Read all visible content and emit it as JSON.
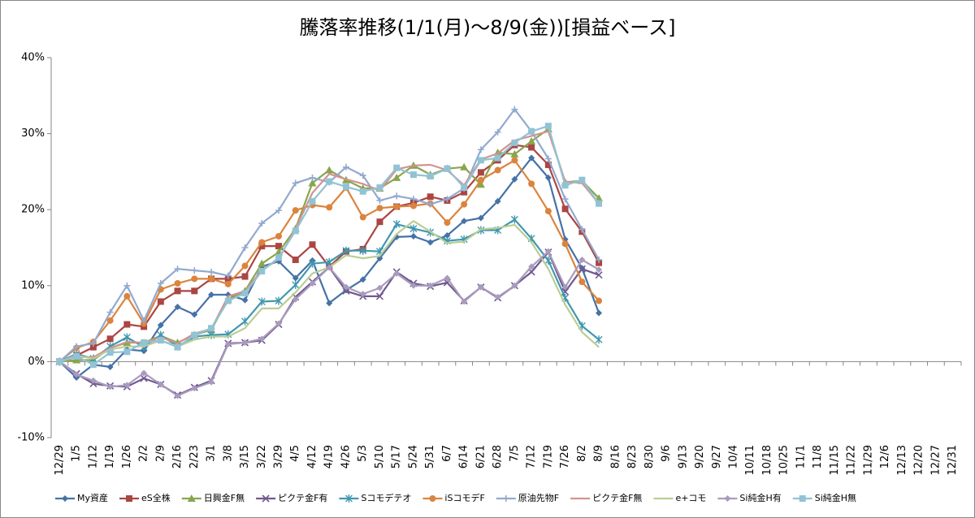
{
  "chart_data": {
    "type": "line",
    "title": "騰落率推移(1/1(月)～8/9(金))[損益ベース]",
    "categories": [
      "12/29",
      "1/5",
      "1/12",
      "1/19",
      "1/26",
      "2/2",
      "2/9",
      "2/16",
      "2/23",
      "3/1",
      "3/8",
      "3/15",
      "3/22",
      "3/29",
      "4/5",
      "4/12",
      "4/19",
      "4/26",
      "5/3",
      "5/10",
      "5/17",
      "5/24",
      "5/31",
      "6/7",
      "6/14",
      "6/21",
      "6/28",
      "7/5",
      "7/12",
      "7/19",
      "7/26",
      "8/2",
      "8/9",
      "8/16",
      "8/23",
      "8/30",
      "9/6",
      "9/13",
      "9/20",
      "9/27",
      "10/4",
      "10/11",
      "10/18",
      "10/25",
      "11/1",
      "11/8",
      "11/15",
      "11/22",
      "11/29",
      "12/6",
      "12/13",
      "12/20",
      "12/27",
      "12/31"
    ],
    "ylim": [
      -10,
      40
    ],
    "yticks": [
      {
        "value": -10,
        "label": "-10%"
      },
      {
        "value": 0,
        "label": "0%"
      },
      {
        "value": 10,
        "label": "10%"
      },
      {
        "value": 20,
        "label": "20%"
      },
      {
        "value": 30,
        "label": "30%"
      },
      {
        "value": 40,
        "label": "40%"
      }
    ],
    "grid": false,
    "legend": "bottom",
    "series": [
      {
        "name": "My資産",
        "color": "#4572a7",
        "marker": "diamond",
        "values": [
          0,
          -2.1,
          -0.4,
          -0.7,
          1.6,
          1.4,
          4.8,
          7.2,
          6.2,
          8.8,
          8.8,
          8.1,
          12.5,
          13.2,
          11.0,
          13.3,
          7.7,
          9.4,
          10.8,
          13.6,
          16.4,
          16.5,
          15.7,
          16.6,
          18.5,
          18.9,
          21.1,
          24.0,
          26.8,
          24.2,
          16.1,
          12.3,
          6.4,
          null,
          null,
          null,
          null,
          null,
          null,
          null,
          null,
          null,
          null,
          null,
          null,
          null,
          null,
          null,
          null,
          null,
          null,
          null,
          null,
          null
        ]
      },
      {
        "name": "eS全株",
        "color": "#aa4643",
        "marker": "square",
        "values": [
          0,
          0.8,
          1.9,
          3.0,
          4.9,
          4.6,
          7.9,
          9.3,
          9.3,
          10.9,
          10.9,
          11.2,
          15.2,
          15.2,
          13.4,
          15.4,
          12.5,
          14.5,
          14.8,
          18.4,
          20.4,
          20.9,
          21.7,
          21.2,
          22.3,
          24.9,
          26.5,
          28.5,
          28.2,
          25.9,
          20.1,
          17.1,
          13.0,
          null,
          null,
          null,
          null,
          null,
          null,
          null,
          null,
          null,
          null,
          null,
          null,
          null,
          null,
          null,
          null,
          null,
          null,
          null,
          null,
          null
        ]
      },
      {
        "name": "日興金F無",
        "color": "#89a54e",
        "marker": "triangle",
        "values": [
          0,
          0.2,
          0.2,
          1.8,
          2.5,
          2.5,
          3.4,
          2.5,
          3.5,
          4.2,
          8.2,
          9.3,
          12.9,
          14.4,
          17.5,
          23.5,
          25.2,
          23.9,
          22.8,
          22.8,
          24.2,
          25.8,
          24.6,
          25.4,
          25.6,
          23.3,
          27.5,
          27.3,
          29.0,
          30.6,
          23.6,
          23.8,
          21.5,
          null,
          null,
          null,
          null,
          null,
          null,
          null,
          null,
          null,
          null,
          null,
          null,
          null,
          null,
          null,
          null,
          null,
          null,
          null,
          null,
          null
        ]
      },
      {
        "name": "ピクテ金F有",
        "color": "#71588f",
        "marker": "x",
        "values": [
          0,
          -1.6,
          -2.9,
          -3.2,
          -3.3,
          -2.2,
          -3.0,
          -4.4,
          -3.4,
          -2.5,
          2.4,
          2.5,
          2.8,
          4.9,
          8.5,
          10.5,
          12.4,
          9.3,
          8.6,
          8.6,
          11.8,
          10.3,
          9.9,
          10.4,
          8.0,
          9.8,
          8.4,
          10.0,
          11.8,
          14.4,
          9.2,
          12.2,
          11.4,
          null,
          null,
          null,
          null,
          null,
          null,
          null,
          null,
          null,
          null,
          null,
          null,
          null,
          null,
          null,
          null,
          null,
          null,
          null,
          null,
          null
        ]
      },
      {
        "name": "Sコモデテオ",
        "color": "#4198af",
        "marker": "star",
        "values": [
          0,
          1.0,
          0.4,
          2.0,
          3.2,
          1.9,
          3.5,
          2.0,
          3.3,
          3.5,
          3.6,
          5.3,
          7.9,
          8.0,
          10.1,
          12.9,
          13.1,
          14.6,
          14.6,
          14.5,
          18.1,
          17.5,
          17.0,
          15.9,
          16.1,
          17.3,
          17.3,
          18.7,
          16.2,
          13.3,
          8.4,
          4.7,
          2.9,
          null,
          null,
          null,
          null,
          null,
          null,
          null,
          null,
          null,
          null,
          null,
          null,
          null,
          null,
          null,
          null,
          null,
          null,
          null,
          null,
          null
        ]
      },
      {
        "name": "iSコモデF",
        "color": "#db843d",
        "marker": "circle",
        "values": [
          0,
          1.8,
          2.6,
          5.4,
          8.6,
          5.0,
          9.5,
          10.3,
          10.9,
          10.9,
          10.2,
          12.6,
          15.7,
          16.5,
          19.9,
          20.6,
          20.3,
          22.9,
          19.0,
          20.2,
          20.4,
          20.5,
          20.8,
          18.3,
          20.7,
          23.9,
          25.2,
          26.5,
          23.4,
          19.8,
          15.5,
          10.5,
          8.0,
          null,
          null,
          null,
          null,
          null,
          null,
          null,
          null,
          null,
          null,
          null,
          null,
          null,
          null,
          null,
          null,
          null,
          null,
          null,
          null,
          null
        ]
      },
      {
        "name": "原油先物F",
        "color": "#93a9cf",
        "marker": "plus",
        "values": [
          0,
          2.0,
          2.4,
          6.5,
          10.0,
          5.4,
          10.3,
          12.2,
          12.0,
          11.8,
          11.3,
          15.0,
          18.2,
          19.9,
          23.5,
          24.2,
          23.6,
          25.6,
          24.5,
          21.2,
          21.8,
          21.4,
          20.7,
          21.4,
          22.8,
          27.9,
          30.2,
          33.2,
          30.3,
          26.7,
          21.4,
          17.4,
          13.4,
          null,
          null,
          null,
          null,
          null,
          null,
          null,
          null,
          null,
          null,
          null,
          null,
          null,
          null,
          null,
          null,
          null,
          null,
          null,
          null,
          null
        ]
      },
      {
        "name": "ピクテ金F無",
        "color": "#d19392",
        "marker": "none",
        "values": [
          0,
          0.6,
          0.6,
          1.8,
          2.6,
          2.5,
          3.2,
          2.4,
          3.7,
          4.3,
          8.6,
          9.3,
          12.0,
          13.5,
          17.5,
          22.2,
          24.7,
          24.0,
          23.4,
          22.5,
          25.3,
          25.8,
          25.9,
          25.2,
          23.2,
          26.6,
          27.4,
          29.1,
          29.7,
          30.3,
          23.7,
          23.5,
          20.8,
          null,
          null,
          null,
          null,
          null,
          null,
          null,
          null,
          null,
          null,
          null,
          null,
          null,
          null,
          null,
          null,
          null,
          null,
          null,
          null,
          null
        ]
      },
      {
        "name": "e+コモ",
        "color": "#b9cd96",
        "marker": "none",
        "values": [
          0,
          0.8,
          0.4,
          1.6,
          2.0,
          2.0,
          2.8,
          2.0,
          2.9,
          3.3,
          3.3,
          4.4,
          7.0,
          7.0,
          9.1,
          11.6,
          12.4,
          14.0,
          13.6,
          13.9,
          16.8,
          18.5,
          17.1,
          15.6,
          15.8,
          17.4,
          17.6,
          18.0,
          15.7,
          12.2,
          7.5,
          3.9,
          1.9,
          null,
          null,
          null,
          null,
          null,
          null,
          null,
          null,
          null,
          null,
          null,
          null,
          null,
          null,
          null,
          null,
          null,
          null,
          null,
          null,
          null
        ]
      },
      {
        "name": "Si純金H有",
        "color": "#a99bbd",
        "marker": "diamond",
        "values": [
          0,
          -1.7,
          -2.5,
          -3.3,
          -3.1,
          -1.5,
          -3.0,
          -4.5,
          -3.5,
          -2.7,
          2.3,
          2.5,
          3.0,
          5.0,
          8.2,
          10.3,
          12.4,
          9.8,
          8.9,
          9.7,
          11.6,
          10.0,
          10.0,
          11.0,
          7.9,
          9.8,
          8.5,
          10.0,
          12.5,
          14.5,
          9.8,
          13.4,
          12.1,
          null,
          null,
          null,
          null,
          null,
          null,
          null,
          null,
          null,
          null,
          null,
          null,
          null,
          null,
          null,
          null,
          null,
          null,
          null,
          null,
          null
        ]
      },
      {
        "name": "Si純金H無",
        "color": "#91c3d5",
        "marker": "square",
        "values": [
          0,
          0.7,
          -0.4,
          1.2,
          1.3,
          2.5,
          2.8,
          1.9,
          3.5,
          4.4,
          8.0,
          9.0,
          11.9,
          13.7,
          17.2,
          21.1,
          23.7,
          23.0,
          22.4,
          22.9,
          25.5,
          24.6,
          24.4,
          25.4,
          22.9,
          26.5,
          26.8,
          28.8,
          30.3,
          31.0,
          23.2,
          23.9,
          20.8,
          null,
          null,
          null,
          null,
          null,
          null,
          null,
          null,
          null,
          null,
          null,
          null,
          null,
          null,
          null,
          null,
          null,
          null,
          null,
          null,
          null
        ]
      }
    ]
  }
}
